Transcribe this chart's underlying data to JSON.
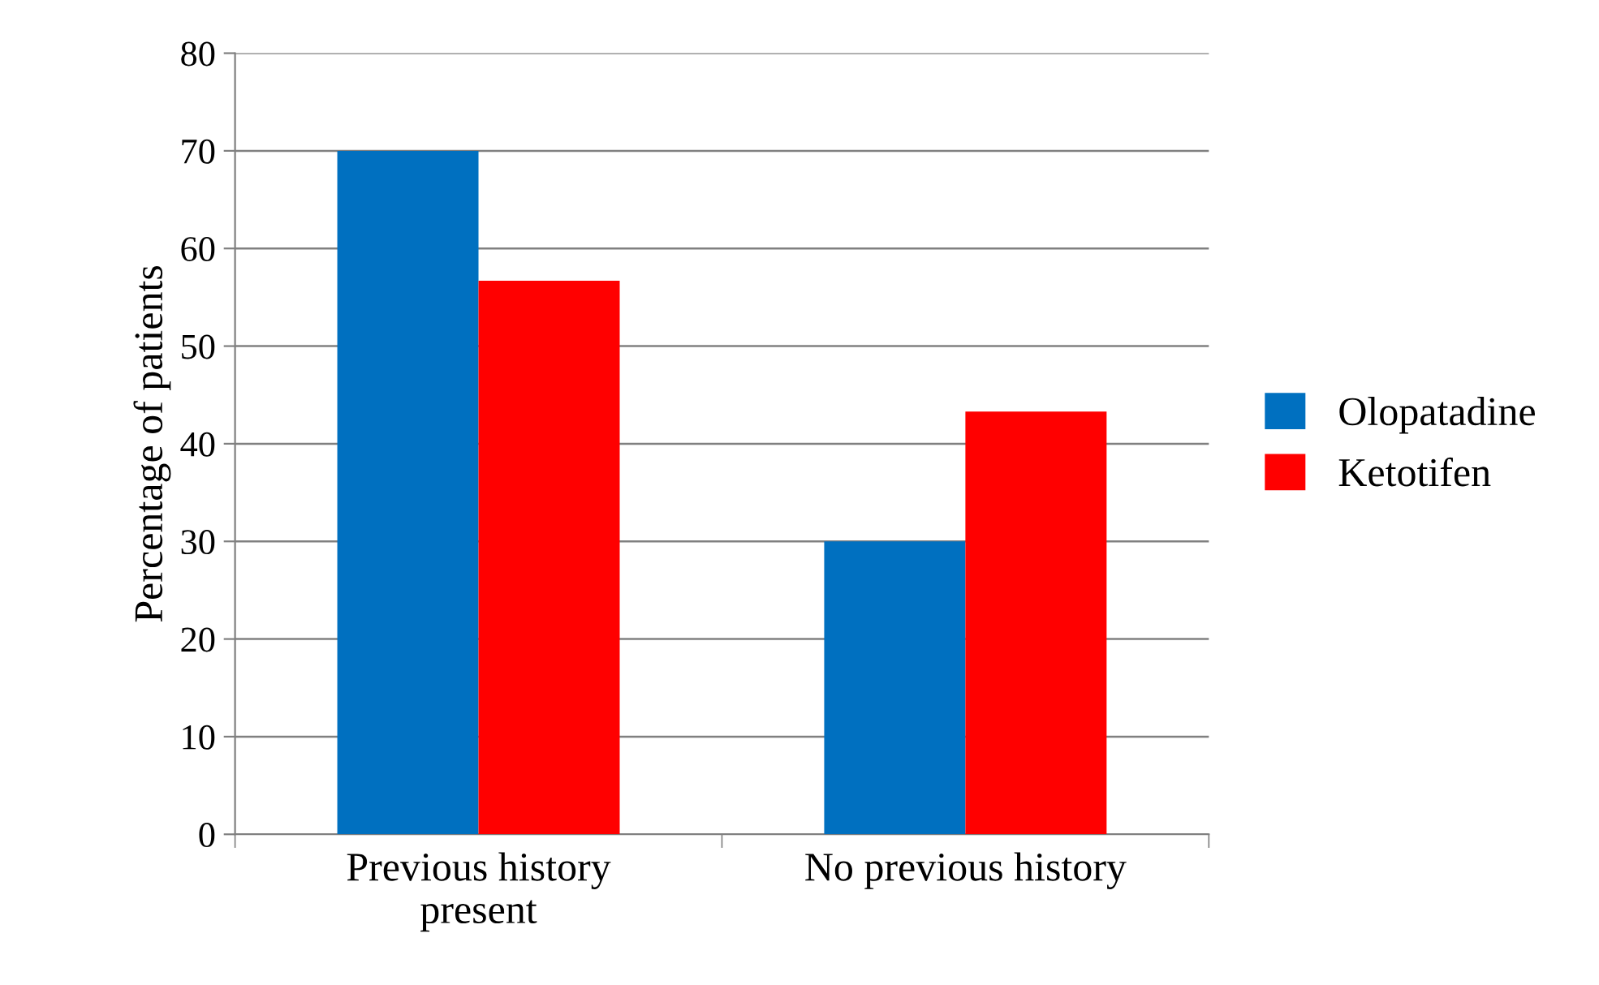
{
  "chart_data": {
    "type": "bar",
    "ylabel": "Percentage of patients",
    "categories": [
      "Previous history\npresent",
      "No previous history"
    ],
    "series": [
      {
        "name": "Olopatadine",
        "color": "#0070c0",
        "values": [
          70,
          30
        ]
      },
      {
        "name": "Ketotifen",
        "color": "#ff0000",
        "values": [
          56.7,
          43.3
        ]
      }
    ],
    "ylim": [
      0,
      80
    ],
    "yticks": [
      0,
      10,
      20,
      30,
      40,
      50,
      60,
      70,
      80
    ],
    "grid": "y",
    "legend": "right"
  }
}
